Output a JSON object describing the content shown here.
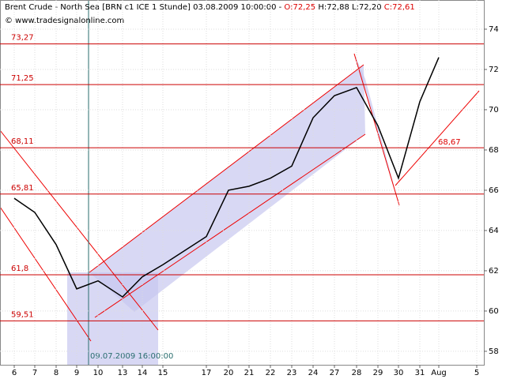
{
  "chart_data": {
    "type": "line",
    "title": "Brent Crude - North Sea [BRN c1 ICE  1 Stunde] 03.08.2009 10:00:00 -",
    "quote_open": "O:72,25",
    "quote_high_low": "H:72,88 L:72,20",
    "quote_close": "C:72,61",
    "copyright": "© www.tradesignalonline.com",
    "crosshair_label": "09.07.2009 16:00:00",
    "trend_label": "68,67",
    "categories": [
      "6",
      "7",
      "8",
      "9",
      "10",
      "13",
      "14",
      "15",
      "17",
      "20",
      "21",
      "22",
      "23",
      "24",
      "27",
      "28",
      "29",
      "30",
      "31",
      "Aug",
      "5"
    ],
    "series": [
      {
        "color": "#000000",
        "values": [
          65.6,
          64.9,
          63.3,
          61.1,
          61.5,
          60.7,
          61.7,
          62.3,
          63.7,
          66.0,
          66.2,
          66.6,
          67.2,
          69.6,
          70.7,
          71.1,
          69.2,
          66.6,
          70.4,
          72.6,
          null
        ]
      }
    ],
    "levels": [
      {
        "value": 73.27,
        "label": "73,27"
      },
      {
        "value": 71.25,
        "label": "71,25"
      },
      {
        "value": 68.11,
        "label": "68,11"
      },
      {
        "value": 65.81,
        "label": "65,81"
      },
      {
        "value": 61.8,
        "label": "61,8"
      },
      {
        "value": 59.51,
        "label": "59,51"
      }
    ],
    "level_color": "#cc0000",
    "ylim": [
      57.33,
      75.45
    ],
    "yticks": [
      58,
      60,
      62,
      64,
      66,
      68,
      70,
      72,
      74
    ],
    "grid": true
  }
}
